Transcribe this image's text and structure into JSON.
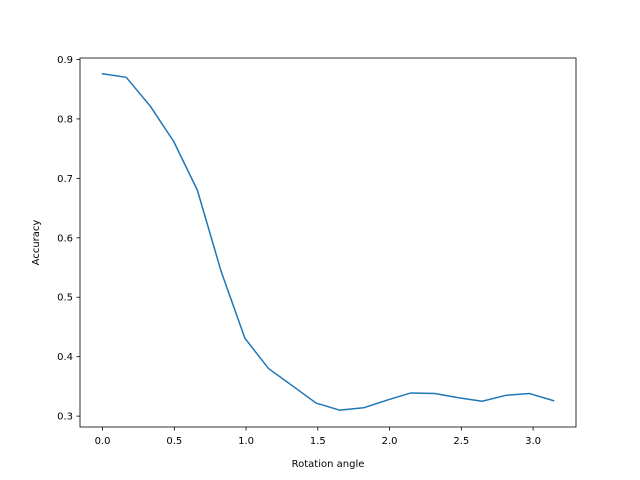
{
  "chart_data": {
    "type": "line",
    "title": "",
    "xlabel": "Rotation angle",
    "ylabel": "Accuracy",
    "xlim": [
      -0.157,
      3.299
    ],
    "ylim": [
      0.2817,
      0.9025
    ],
    "xticks": [
      {
        "value": 0.0,
        "label": "0.0"
      },
      {
        "value": 0.5,
        "label": "0.5"
      },
      {
        "value": 1.0,
        "label": "1.0"
      },
      {
        "value": 1.5,
        "label": "1.5"
      },
      {
        "value": 2.0,
        "label": "2.0"
      },
      {
        "value": 2.5,
        "label": "2.5"
      },
      {
        "value": 3.0,
        "label": "3.0"
      }
    ],
    "yticks": [
      {
        "value": 0.3,
        "label": "0.3"
      },
      {
        "value": 0.4,
        "label": "0.4"
      },
      {
        "value": 0.5,
        "label": "0.5"
      },
      {
        "value": 0.6,
        "label": "0.6"
      },
      {
        "value": 0.7,
        "label": "0.7"
      },
      {
        "value": 0.8,
        "label": "0.8"
      },
      {
        "value": 0.9,
        "label": "0.9"
      }
    ],
    "grid": false,
    "series": [
      {
        "color": "#1f77b4",
        "x": [
          0.0,
          0.165,
          0.331,
          0.496,
          0.661,
          0.827,
          0.992,
          1.157,
          1.323,
          1.488,
          1.653,
          1.819,
          1.984,
          2.149,
          2.315,
          2.48,
          2.645,
          2.811,
          2.976,
          3.142
        ],
        "y": [
          0.876,
          0.87,
          0.822,
          0.762,
          0.68,
          0.543,
          0.431,
          0.38,
          0.351,
          0.322,
          0.31,
          0.314,
          0.327,
          0.339,
          0.338,
          0.331,
          0.325,
          0.335,
          0.338,
          0.326
        ]
      }
    ]
  }
}
